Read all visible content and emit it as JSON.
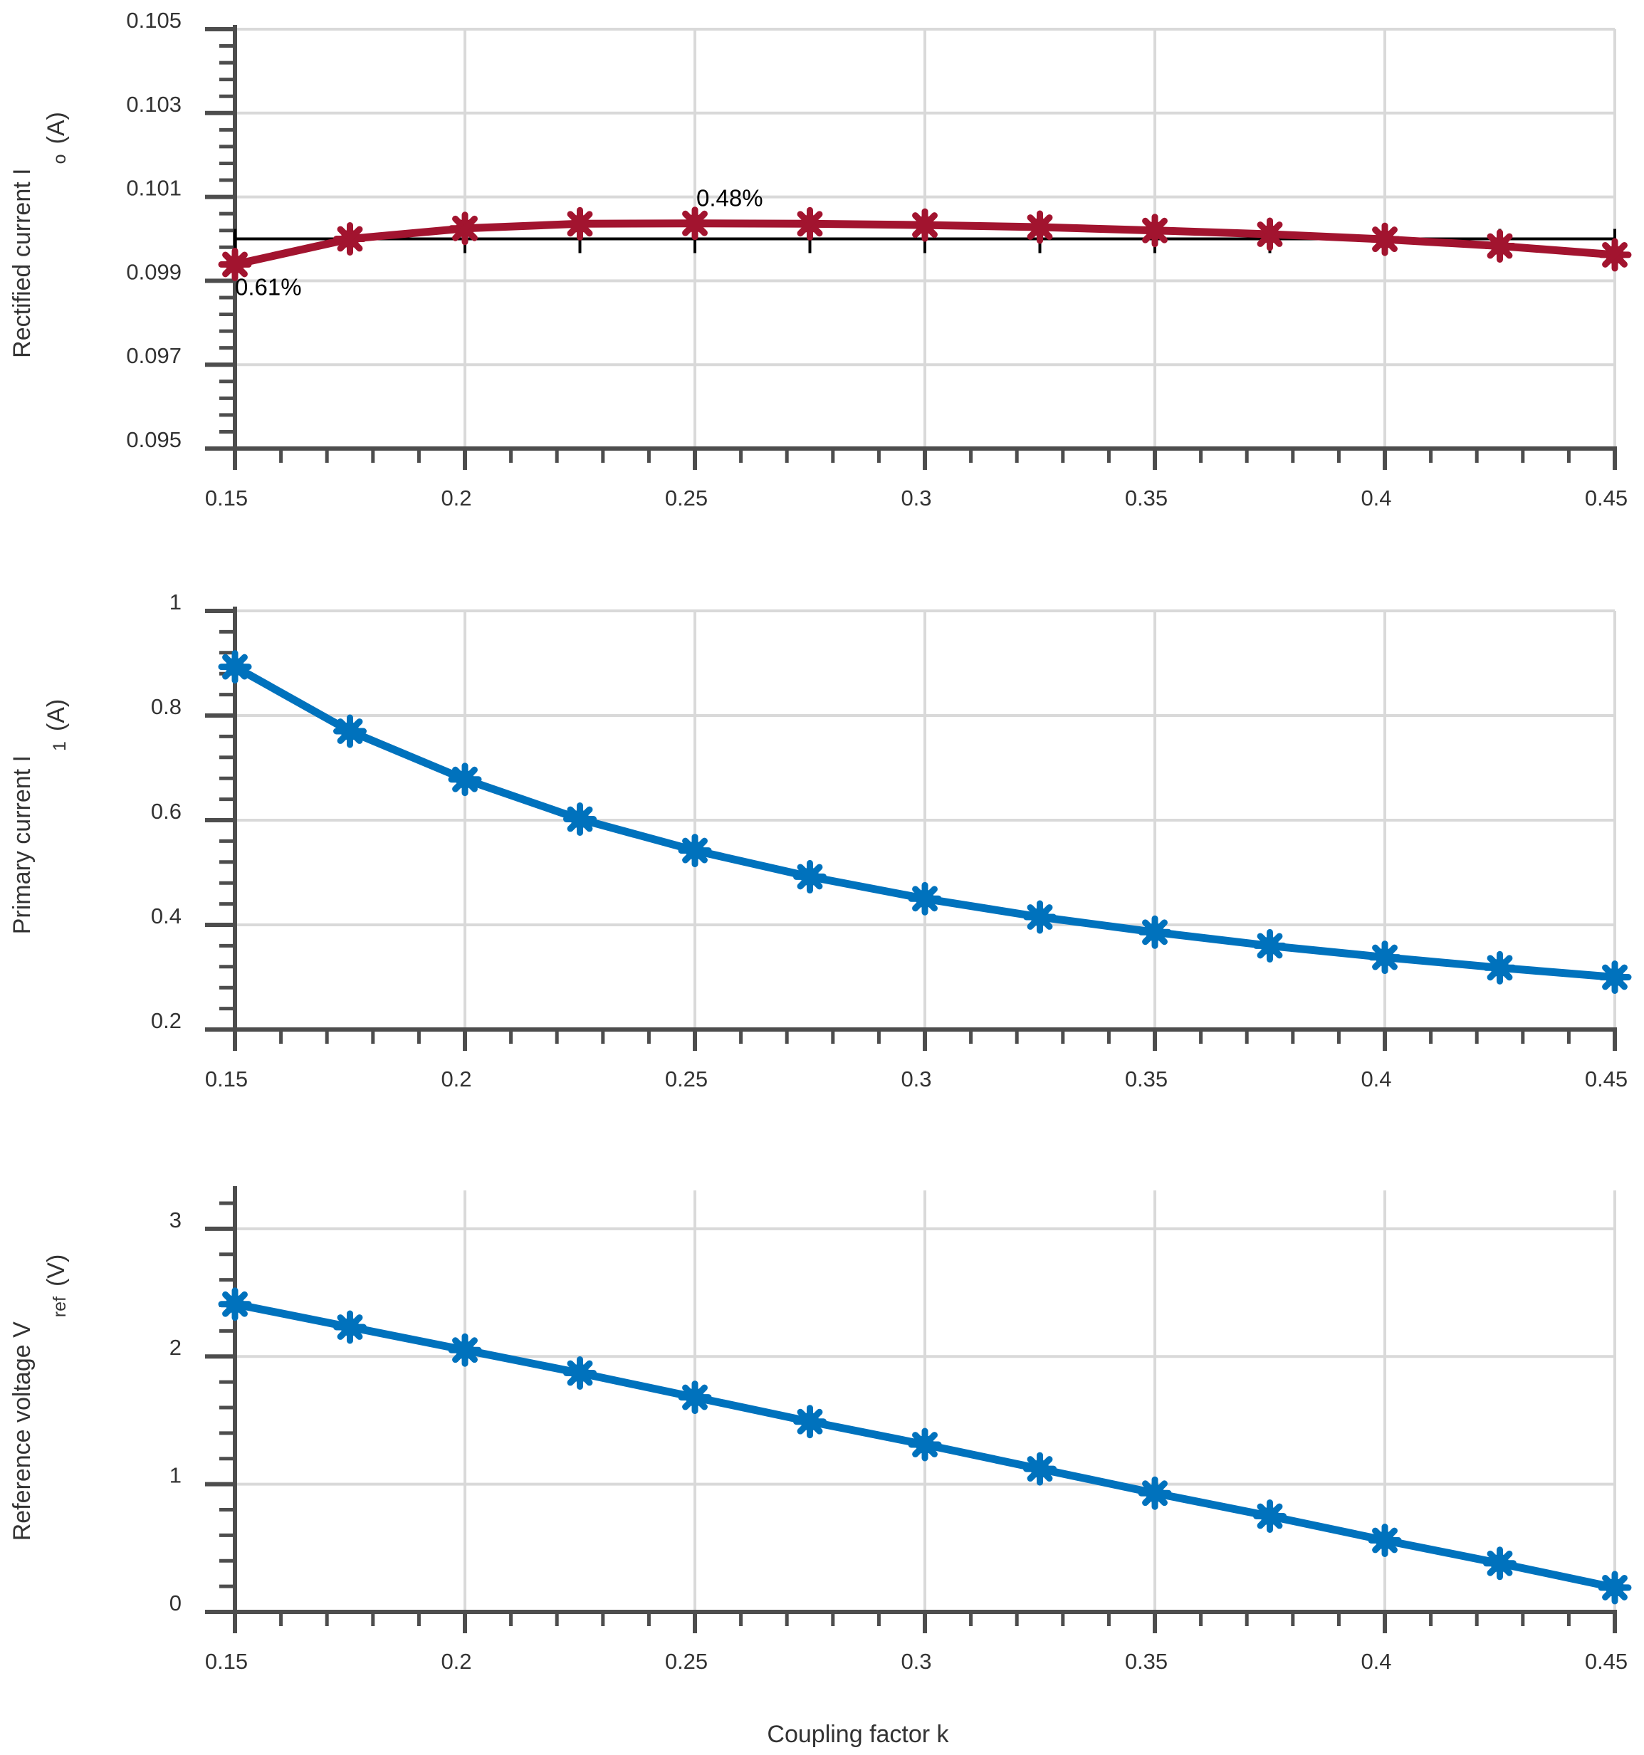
{
  "chart_data": [
    {
      "type": "line",
      "ylabel": "Rectified current I",
      "ylabel_sub": "o",
      "ylabel_unit": "(A)",
      "xlabel": "",
      "xlim": [
        0.15,
        0.45
      ],
      "ylim": [
        0.095,
        0.105
      ],
      "xticks": [
        0.15,
        0.2,
        0.25,
        0.3,
        0.35,
        0.4,
        0.45
      ],
      "xtick_labels": [
        "0.15",
        "0.2",
        "0.25",
        "0.3",
        "0.35",
        "0.4",
        "0.45"
      ],
      "yticks": [
        0.095,
        0.097,
        0.099,
        0.101,
        0.103,
        0.105
      ],
      "ytick_labels": [
        "0.095",
        "0.097",
        "0.099",
        "0.101",
        "0.103",
        "0.105"
      ],
      "grid": true,
      "series": [
        {
          "name": "Rectified current",
          "color": "#a2142f",
          "marker": "asterisk",
          "x": [
            0.15,
            0.175,
            0.2,
            0.225,
            0.25,
            0.275,
            0.3,
            0.325,
            0.35,
            0.375,
            0.4,
            0.425,
            0.45
          ],
          "values": [
            0.09939,
            0.1,
            0.10025,
            0.10036,
            0.10037,
            0.10036,
            0.10033,
            0.10028,
            0.1002,
            0.10011,
            0.09999,
            0.09983,
            0.09962
          ]
        }
      ],
      "reference": {
        "value": 0.1,
        "color": "#000000"
      },
      "annotations": [
        {
          "text": "0.48%",
          "x": 0.25,
          "y": 0.10078
        },
        {
          "text": "0.61%",
          "x": 0.15,
          "y": 0.09866
        }
      ]
    },
    {
      "type": "line",
      "ylabel": "Primary current I",
      "ylabel_sub": "1",
      "ylabel_unit": "(A)",
      "xlabel": "",
      "xlim": [
        0.15,
        0.45
      ],
      "ylim": [
        0.2,
        1.0
      ],
      "xticks": [
        0.15,
        0.2,
        0.25,
        0.3,
        0.35,
        0.4,
        0.45
      ],
      "xtick_labels": [
        "0.15",
        "0.2",
        "0.25",
        "0.3",
        "0.35",
        "0.4",
        "0.45"
      ],
      "yticks": [
        0.2,
        0.4,
        0.6,
        0.8,
        1.0
      ],
      "ytick_labels": [
        "0.2",
        "0.4",
        "0.6",
        "0.8",
        "1"
      ],
      "grid": true,
      "series": [
        {
          "name": "Primary current",
          "color": "#0072bd",
          "marker": "asterisk",
          "x": [
            0.15,
            0.175,
            0.2,
            0.225,
            0.25,
            0.275,
            0.3,
            0.325,
            0.35,
            0.375,
            0.4,
            0.425,
            0.45
          ],
          "values": [
            0.893,
            0.77,
            0.678,
            0.602,
            0.542,
            0.492,
            0.45,
            0.415,
            0.386,
            0.36,
            0.338,
            0.318,
            0.3
          ]
        }
      ]
    },
    {
      "type": "line",
      "ylabel": "Reference voltage V",
      "ylabel_sub": "ref",
      "ylabel_unit": "(V)",
      "xlabel": "Coupling factor k",
      "xlim": [
        0.15,
        0.45
      ],
      "ylim": [
        0,
        3.3
      ],
      "xticks": [
        0.15,
        0.2,
        0.25,
        0.3,
        0.35,
        0.4,
        0.45
      ],
      "xtick_labels": [
        "0.15",
        "0.2",
        "0.25",
        "0.3",
        "0.35",
        "0.4",
        "0.45"
      ],
      "yticks": [
        0,
        1,
        2,
        3
      ],
      "ytick_labels": [
        "0",
        "1",
        "2",
        "3"
      ],
      "grid": true,
      "series": [
        {
          "name": "Reference voltage",
          "color": "#0072bd",
          "marker": "asterisk",
          "x": [
            0.15,
            0.175,
            0.2,
            0.225,
            0.25,
            0.275,
            0.3,
            0.325,
            0.35,
            0.375,
            0.4,
            0.425,
            0.45
          ],
          "values": [
            2.41,
            2.23,
            2.05,
            1.87,
            1.68,
            1.49,
            1.31,
            1.12,
            0.93,
            0.75,
            0.56,
            0.38,
            0.19
          ]
        }
      ]
    }
  ]
}
